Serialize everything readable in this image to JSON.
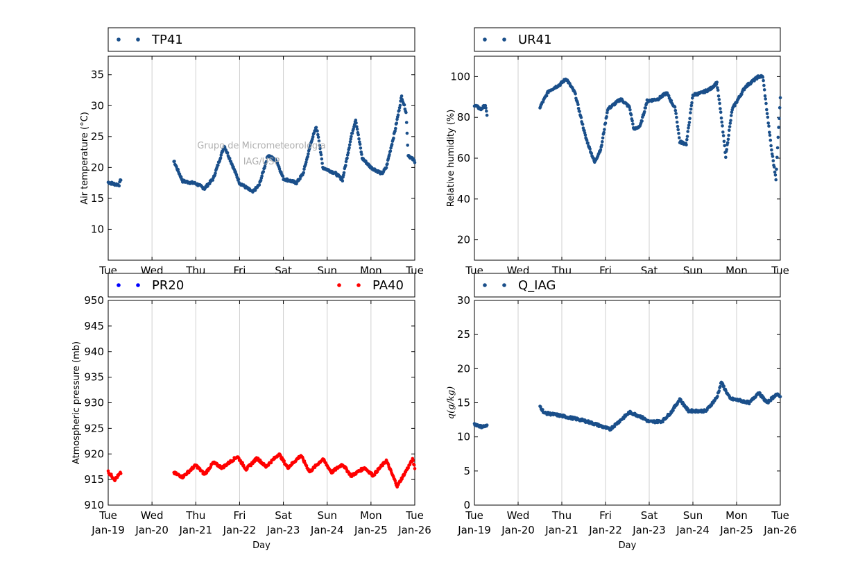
{
  "watermark": {
    "line1": "Grupo de Micrometeorologia",
    "line2": "IAG/USP"
  },
  "x_ticks": [
    {
      "day": "Tue",
      "date": "Jan-19"
    },
    {
      "day": "Wed",
      "date": "Jan-20"
    },
    {
      "day": "Thu",
      "date": "Jan-21"
    },
    {
      "day": "Fri",
      "date": "Jan-22"
    },
    {
      "day": "Sat",
      "date": "Jan-23"
    },
    {
      "day": "Sun",
      "date": "Jan-24"
    },
    {
      "day": "Mon",
      "date": "Jan-25"
    },
    {
      "day": "Tue",
      "date": "Jan-26"
    }
  ],
  "chart_data": [
    {
      "type": "scatter",
      "id": "temperature",
      "xlabel": "Day",
      "ylabel": "Air temperature (°C)",
      "ylim": [
        5,
        38
      ],
      "yticks": [
        10,
        15,
        20,
        25,
        30,
        35
      ],
      "xlim": [
        "Jan-19",
        "Jan-26"
      ],
      "grid": "vertical",
      "legend": "top",
      "series": [
        {
          "name": "TP41",
          "color": "#1a4f8a",
          "points": [
            [
              0.0,
              17.6
            ],
            [
              0.15,
              17.3
            ],
            [
              0.25,
              17.2
            ],
            [
              0.3,
              18.4
            ],
            [
              1.5,
              21.0
            ],
            [
              1.7,
              17.8
            ],
            [
              2.0,
              17.4
            ],
            [
              2.2,
              16.6
            ],
            [
              2.4,
              18.2
            ],
            [
              2.65,
              23.5
            ],
            [
              2.8,
              21.0
            ],
            [
              3.0,
              17.5
            ],
            [
              3.3,
              16.0
            ],
            [
              3.45,
              17.2
            ],
            [
              3.65,
              22.0
            ],
            [
              3.85,
              21.0
            ],
            [
              4.0,
              18.2
            ],
            [
              4.3,
              17.5
            ],
            [
              4.45,
              19.0
            ],
            [
              4.65,
              24.5
            ],
            [
              4.75,
              26.5
            ],
            [
              4.8,
              25.0
            ],
            [
              4.9,
              20.0
            ],
            [
              5.2,
              19.0
            ],
            [
              5.35,
              18.0
            ],
            [
              5.55,
              25.0
            ],
            [
              5.65,
              27.8
            ],
            [
              5.8,
              21.5
            ],
            [
              6.0,
              20.0
            ],
            [
              6.25,
              19.0
            ],
            [
              6.35,
              20.0
            ],
            [
              6.55,
              26.0
            ],
            [
              6.7,
              31.5
            ],
            [
              6.8,
              29.0
            ],
            [
              6.85,
              22.0
            ],
            [
              7.0,
              21.0
            ]
          ]
        }
      ]
    },
    {
      "type": "scatter",
      "id": "humidity",
      "xlabel": "Day",
      "ylabel": "Relative humidity (%)",
      "ylim": [
        10,
        110
      ],
      "yticks": [
        20,
        40,
        60,
        80,
        100
      ],
      "xlim": [
        "Jan-19",
        "Jan-26"
      ],
      "grid": "vertical",
      "legend": "top",
      "series": [
        {
          "name": "UR41",
          "color": "#1a4f8a",
          "points": [
            [
              0.0,
              86
            ],
            [
              0.15,
              84
            ],
            [
              0.25,
              86
            ],
            [
              0.3,
              79
            ],
            [
              1.5,
              85
            ],
            [
              1.7,
              93
            ],
            [
              1.95,
              96
            ],
            [
              2.1,
              99
            ],
            [
              2.3,
              92
            ],
            [
              2.55,
              70
            ],
            [
              2.75,
              58
            ],
            [
              2.9,
              65
            ],
            [
              3.05,
              84
            ],
            [
              3.35,
              89
            ],
            [
              3.55,
              85
            ],
            [
              3.65,
              74
            ],
            [
              3.8,
              76
            ],
            [
              3.95,
              88
            ],
            [
              4.2,
              89
            ],
            [
              4.4,
              92
            ],
            [
              4.6,
              84
            ],
            [
              4.7,
              68
            ],
            [
              4.85,
              67
            ],
            [
              5.0,
              91
            ],
            [
              5.2,
              92
            ],
            [
              5.4,
              94
            ],
            [
              5.55,
              97
            ],
            [
              5.65,
              80
            ],
            [
              5.75,
              61
            ],
            [
              5.9,
              84
            ],
            [
              6.2,
              95
            ],
            [
              6.5,
              100
            ],
            [
              6.6,
              100
            ],
            [
              6.7,
              82
            ],
            [
              6.8,
              64
            ],
            [
              6.9,
              50
            ],
            [
              7.0,
              90
            ]
          ]
        }
      ]
    },
    {
      "type": "scatter",
      "id": "pressure",
      "xlabel": "Day",
      "ylabel": "Atmospheric pressure (mb)",
      "ylim": [
        910,
        950
      ],
      "yticks": [
        910,
        915,
        920,
        925,
        930,
        935,
        940,
        945,
        950
      ],
      "xlim": [
        "Jan-19",
        "Jan-26"
      ],
      "grid": "vertical",
      "legend": "top",
      "series": [
        {
          "name": "PR20",
          "color": "#0000ff",
          "points": []
        },
        {
          "name": "PA40",
          "color": "#ff0000",
          "points": [
            [
              0.0,
              916.5
            ],
            [
              0.15,
              915.0
            ],
            [
              0.3,
              916.4
            ],
            [
              1.5,
              916.3
            ],
            [
              1.7,
              915.5
            ],
            [
              2.0,
              917.8
            ],
            [
              2.2,
              916.0
            ],
            [
              2.4,
              918.3
            ],
            [
              2.6,
              917.3
            ],
            [
              2.95,
              919.5
            ],
            [
              3.15,
              917.0
            ],
            [
              3.4,
              919.2
            ],
            [
              3.6,
              917.5
            ],
            [
              3.9,
              920.0
            ],
            [
              4.1,
              917.3
            ],
            [
              4.4,
              919.7
            ],
            [
              4.6,
              916.5
            ],
            [
              4.9,
              919.0
            ],
            [
              5.1,
              916.4
            ],
            [
              5.35,
              918.0
            ],
            [
              5.55,
              915.7
            ],
            [
              5.85,
              917.3
            ],
            [
              6.05,
              915.8
            ],
            [
              6.35,
              918.7
            ],
            [
              6.6,
              913.7
            ],
            [
              6.95,
              918.9
            ],
            [
              7.0,
              917.3
            ]
          ]
        }
      ]
    },
    {
      "type": "scatter",
      "id": "specific_humidity",
      "xlabel": "Day",
      "ylabel": "q(g/kg)",
      "ylim": [
        0,
        30
      ],
      "yticks": [
        0,
        5,
        10,
        15,
        20,
        25,
        30
      ],
      "xlim": [
        "Jan-19",
        "Jan-26"
      ],
      "grid": "vertical",
      "legend": "top",
      "series": [
        {
          "name": "Q_IAG",
          "color": "#1a4f8a",
          "points": [
            [
              0.0,
              11.9
            ],
            [
              0.15,
              11.5
            ],
            [
              0.3,
              11.6
            ],
            [
              1.5,
              14.5
            ],
            [
              1.6,
              13.5
            ],
            [
              1.9,
              13.2
            ],
            [
              2.2,
              12.8
            ],
            [
              2.5,
              12.4
            ],
            [
              2.8,
              11.8
            ],
            [
              3.1,
              11.1
            ],
            [
              3.3,
              12.2
            ],
            [
              3.55,
              13.6
            ],
            [
              3.8,
              13.0
            ],
            [
              4.0,
              12.2
            ],
            [
              4.3,
              12.3
            ],
            [
              4.5,
              13.6
            ],
            [
              4.7,
              15.5
            ],
            [
              4.9,
              13.8
            ],
            [
              5.3,
              13.8
            ],
            [
              5.55,
              15.8
            ],
            [
              5.65,
              18.0
            ],
            [
              5.85,
              15.6
            ],
            [
              6.1,
              15.3
            ],
            [
              6.3,
              15.0
            ],
            [
              6.5,
              16.5
            ],
            [
              6.7,
              15.0
            ],
            [
              6.9,
              16.2
            ],
            [
              7.0,
              16.0
            ]
          ]
        }
      ]
    }
  ]
}
